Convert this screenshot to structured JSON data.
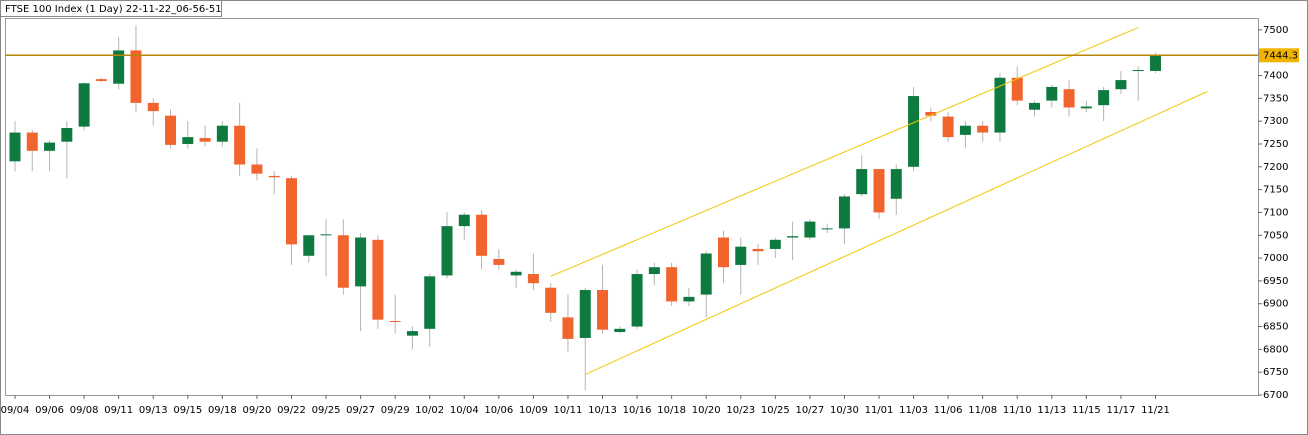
{
  "chart_data": {
    "type": "candlestick",
    "title": "FTSE 100 Index (1 Day) 22-11-22_06-56-51",
    "categories": [
      "09/04",
      null,
      "09/06",
      null,
      "09/08",
      null,
      "09/11",
      null,
      "09/13",
      null,
      "09/15",
      null,
      "09/18",
      null,
      "09/20",
      null,
      "09/22",
      null,
      "09/25",
      null,
      "09/27",
      null,
      "09/29",
      null,
      "10/02",
      null,
      "10/04",
      null,
      "10/06",
      null,
      "10/09",
      null,
      "10/11",
      null,
      "10/13",
      null,
      "10/16",
      null,
      "10/18",
      null,
      "10/20",
      null,
      "10/23",
      null,
      "10/25",
      null,
      "10/27",
      null,
      "10/30",
      null,
      "11/01",
      null,
      "11/03",
      null,
      "11/06",
      null,
      "11/08",
      null,
      "11/10",
      null,
      "11/13",
      null,
      "11/15",
      null,
      "11/17",
      null,
      "11/21"
    ],
    "open": [
      7212,
      7275,
      7235,
      7255,
      7288,
      7392,
      7382,
      7455,
      7340,
      7312,
      7250,
      7263,
      7255,
      7290,
      7205,
      7180,
      7175,
      7005,
      7050,
      7050,
      6938,
      7040,
      6862,
      6830,
      6845,
      6962,
      7070,
      7095,
      6998,
      6962,
      6965,
      6935,
      6870,
      6825,
      6930,
      6838,
      6850,
      6965,
      6980,
      6905,
      6920,
      7045,
      6985,
      7020,
      7020,
      7045,
      7045,
      7065,
      7065,
      7140,
      7195,
      7130,
      7200,
      7320,
      7310,
      7270,
      7290,
      7275,
      7395,
      7325,
      7345,
      7370,
      7328,
      7335,
      7370,
      7410,
      7410
    ],
    "high": [
      7300,
      7280,
      7258,
      7300,
      7385,
      7395,
      7485,
      7510,
      7350,
      7325,
      7300,
      7290,
      7300,
      7340,
      7240,
      7190,
      7180,
      7050,
      7085,
      7085,
      7055,
      7050,
      6920,
      6850,
      6965,
      7100,
      7100,
      7105,
      7020,
      6975,
      7010,
      6945,
      6920,
      6935,
      6985,
      6850,
      6975,
      6990,
      6990,
      6935,
      7015,
      7060,
      7045,
      7030,
      7045,
      7080,
      7085,
      7075,
      7140,
      7225,
      7195,
      7205,
      7375,
      7330,
      7320,
      7300,
      7300,
      7405,
      7420,
      7345,
      7380,
      7390,
      7345,
      7375,
      7410,
      7420,
      7450
    ],
    "low": [
      7190,
      7190,
      7190,
      7175,
      7280,
      7385,
      7370,
      7320,
      7290,
      7240,
      7240,
      7245,
      7245,
      7180,
      7170,
      7140,
      6985,
      6990,
      6960,
      6920,
      6840,
      6845,
      6835,
      6800,
      6805,
      6955,
      7040,
      6975,
      6975,
      6935,
      6930,
      6860,
      6795,
      6710,
      6835,
      6835,
      6845,
      6940,
      6895,
      6895,
      6870,
      6945,
      6920,
      6985,
      7000,
      6995,
      7040,
      7055,
      7030,
      7135,
      7085,
      7095,
      7190,
      7300,
      7255,
      7240,
      7255,
      7255,
      7335,
      7310,
      7330,
      7310,
      7320,
      7300,
      7360,
      7345,
      7405
    ],
    "close": [
      7275,
      7235,
      7253,
      7285,
      7383,
      7388,
      7455,
      7340,
      7322,
      7248,
      7265,
      7255,
      7290,
      7205,
      7185,
      7177,
      7030,
      7050,
      7052,
      6935,
      7045,
      6865,
      6860,
      6840,
      6960,
      7070,
      7095,
      7005,
      6985,
      6970,
      6945,
      6880,
      6823,
      6930,
      6843,
      6845,
      6965,
      6980,
      6905,
      6915,
      7010,
      6980,
      7025,
      7015,
      7040,
      7048,
      7080,
      7065,
      7135,
      7195,
      7100,
      7195,
      7355,
      7312,
      7265,
      7290,
      7275,
      7395,
      7345,
      7340,
      7375,
      7330,
      7332,
      7368,
      7390,
      7412,
      7444.3
    ],
    "up_color": "#0e7a40",
    "down_color": "#f2642e",
    "wick_color": "#b4b4b4",
    "last_price": 7444.3,
    "last_price_color": "#b8860b",
    "trendline_color": "#f0c800",
    "trendlines": [
      {
        "from": {
          "index": 31,
          "value": 6960
        },
        "to": {
          "index": 65,
          "value": 7505
        }
      },
      {
        "from": {
          "index": 33,
          "value": 6745
        },
        "to": {
          "index": 69,
          "value": 7365
        }
      }
    ],
    "ylim": [
      6700,
      7526
    ],
    "yticks": [
      6700,
      6750,
      6800,
      6850,
      6900,
      6950,
      7000,
      7050,
      7100,
      7150,
      7200,
      7250,
      7300,
      7350,
      7400,
      7450,
      7500
    ]
  }
}
